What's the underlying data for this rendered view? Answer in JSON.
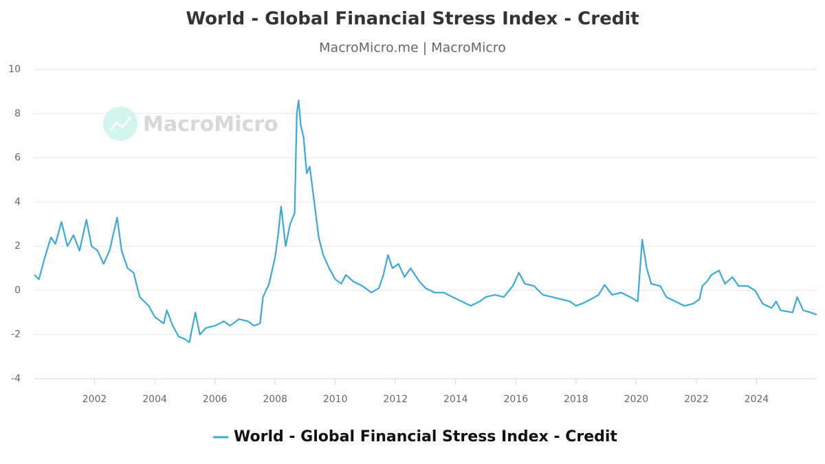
{
  "chart_data": {
    "type": "line",
    "title": "World - Global Financial Stress Index - Credit",
    "subtitle": "MacroMicro.me |  MacroMicro",
    "watermark": "MacroMicro",
    "xlim": [
      2000,
      2026
    ],
    "xticks": [
      2002,
      2004,
      2006,
      2008,
      2010,
      2012,
      2014,
      2016,
      2018,
      2020,
      2022,
      2024
    ],
    "ylim": [
      -4,
      10
    ],
    "yticks": [
      -4,
      -2,
      0,
      2,
      4,
      6,
      8,
      10
    ],
    "grid": true,
    "legend": "bottom",
    "x": [
      2000.0,
      2000.15,
      2000.35,
      2000.55,
      2000.7,
      2000.9,
      2001.1,
      2001.3,
      2001.5,
      2001.73,
      2001.9,
      2002.1,
      2002.3,
      2002.5,
      2002.75,
      2002.9,
      2003.1,
      2003.3,
      2003.5,
      2003.8,
      2004.0,
      2004.3,
      2004.4,
      2004.6,
      2004.8,
      2005.0,
      2005.15,
      2005.35,
      2005.5,
      2005.7,
      2006.0,
      2006.3,
      2006.5,
      2006.8,
      2007.1,
      2007.3,
      2007.5,
      2007.6,
      2007.8,
      2008.0,
      2008.1,
      2008.2,
      2008.35,
      2008.5,
      2008.65,
      2008.72,
      2008.78,
      2008.85,
      2008.95,
      2009.05,
      2009.15,
      2009.3,
      2009.45,
      2009.6,
      2009.8,
      2010.0,
      2010.2,
      2010.35,
      2010.6,
      2010.9,
      2011.2,
      2011.45,
      2011.6,
      2011.75,
      2011.9,
      2012.1,
      2012.3,
      2012.5,
      2012.8,
      2013.0,
      2013.3,
      2013.6,
      2013.9,
      2014.2,
      2014.5,
      2014.8,
      2015.0,
      2015.3,
      2015.6,
      2015.9,
      2016.1,
      2016.3,
      2016.6,
      2016.9,
      2017.2,
      2017.5,
      2017.8,
      2018.0,
      2018.2,
      2018.5,
      2018.75,
      2018.95,
      2019.2,
      2019.5,
      2019.8,
      2020.05,
      2020.2,
      2020.35,
      2020.5,
      2020.8,
      2021.0,
      2021.3,
      2021.6,
      2021.9,
      2022.1,
      2022.2,
      2022.35,
      2022.5,
      2022.75,
      2022.95,
      2023.2,
      2023.4,
      2023.7,
      2023.95,
      2024.2,
      2024.5,
      2024.65,
      2024.8,
      2025.2,
      2025.35,
      2025.55,
      2025.8,
      2026.0
    ],
    "series": [
      {
        "name": "World - Global Financial Stress Index - Credit",
        "color": "#3aa9d6",
        "values": [
          0.7,
          0.5,
          1.5,
          2.4,
          2.1,
          3.1,
          2.0,
          2.5,
          1.8,
          3.2,
          2.0,
          1.8,
          1.2,
          1.8,
          3.3,
          1.8,
          1.0,
          0.8,
          -0.3,
          -0.7,
          -1.2,
          -1.5,
          -0.9,
          -1.6,
          -2.1,
          -2.2,
          -2.35,
          -1.0,
          -2.0,
          -1.7,
          -1.6,
          -1.4,
          -1.6,
          -1.3,
          -1.4,
          -1.6,
          -1.5,
          -0.3,
          0.3,
          1.5,
          2.5,
          3.8,
          2.0,
          3.0,
          3.5,
          8.0,
          8.6,
          7.5,
          6.9,
          5.3,
          5.6,
          4.0,
          2.4,
          1.6,
          1.0,
          0.5,
          0.3,
          0.7,
          0.4,
          0.2,
          -0.1,
          0.1,
          0.7,
          1.6,
          1.0,
          1.2,
          0.6,
          1.0,
          0.4,
          0.1,
          -0.1,
          -0.1,
          -0.3,
          -0.5,
          -0.7,
          -0.5,
          -0.3,
          -0.2,
          -0.3,
          0.2,
          0.8,
          0.3,
          0.2,
          -0.2,
          -0.3,
          -0.4,
          -0.5,
          -0.7,
          -0.6,
          -0.4,
          -0.2,
          0.25,
          -0.2,
          -0.1,
          -0.3,
          -0.5,
          2.3,
          1.0,
          0.3,
          0.2,
          -0.3,
          -0.5,
          -0.7,
          -0.6,
          -0.4,
          0.2,
          0.4,
          0.7,
          0.9,
          0.3,
          0.6,
          0.2,
          0.2,
          0.0,
          -0.6,
          -0.8,
          -0.5,
          -0.9,
          -1.0,
          -0.3,
          -0.9,
          -1.0,
          -1.1
        ]
      }
    ]
  }
}
